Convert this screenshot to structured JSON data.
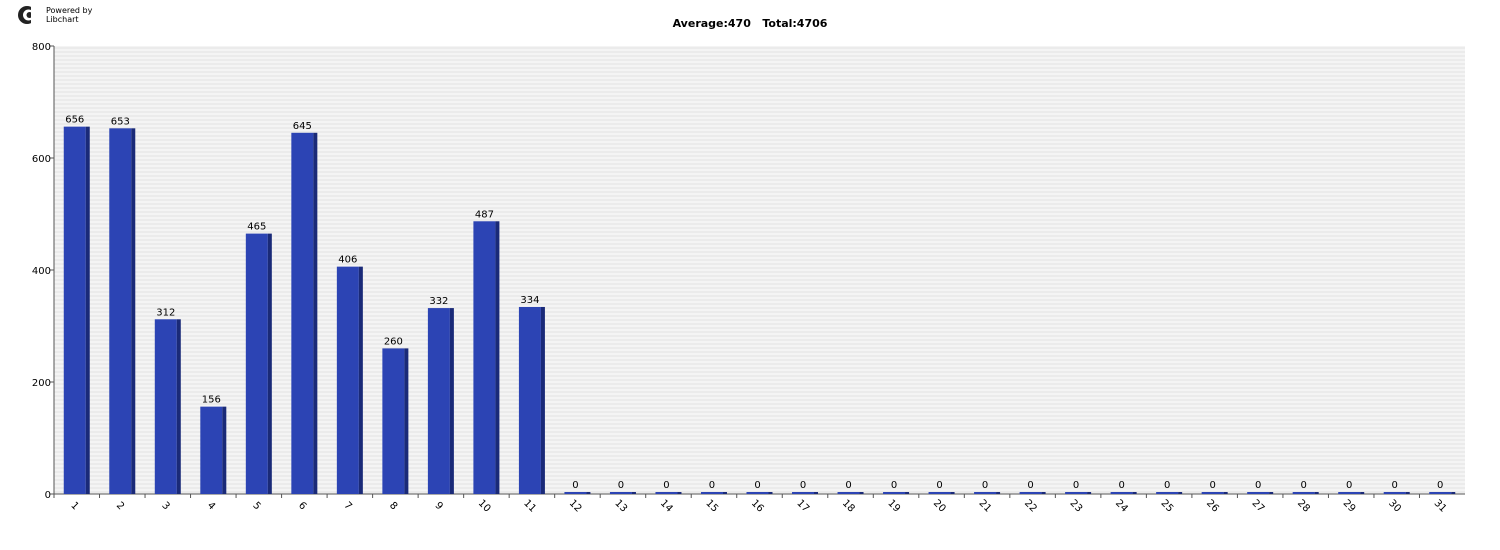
{
  "branding": {
    "line1": "Powered by",
    "line2": "Libchart"
  },
  "chart_data": {
    "type": "bar",
    "title": "Average:470   Total:4706",
    "xlabel": "",
    "ylabel": "",
    "ylim": [
      0,
      800
    ],
    "yticks": [
      0,
      200,
      400,
      600,
      800
    ],
    "grid": true,
    "categories": [
      "1",
      "2",
      "3",
      "4",
      "5",
      "6",
      "7",
      "8",
      "9",
      "10",
      "11",
      "12",
      "13",
      "14",
      "15",
      "16",
      "17",
      "18",
      "19",
      "20",
      "21",
      "22",
      "23",
      "24",
      "25",
      "26",
      "27",
      "28",
      "29",
      "30",
      "31"
    ],
    "values": [
      656,
      653,
      312,
      156,
      465,
      645,
      406,
      260,
      332,
      487,
      334,
      0,
      0,
      0,
      0,
      0,
      0,
      0,
      0,
      0,
      0,
      0,
      0,
      0,
      0,
      0,
      0,
      0,
      0,
      0,
      0
    ],
    "bar_color": "#2c44b4",
    "bar_side_color": "#1a2a78"
  }
}
